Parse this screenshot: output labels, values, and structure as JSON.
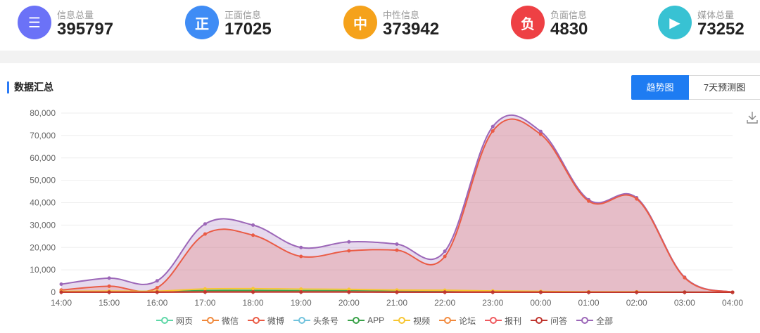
{
  "stats": [
    {
      "icon": "document-icon",
      "glyph": "☰",
      "label": "信息总量",
      "value": "395797",
      "color": "#6b72f7"
    },
    {
      "icon": "positive-icon",
      "glyph": "正",
      "label": "正面信息",
      "value": "17025",
      "color": "#3f8cf5"
    },
    {
      "icon": "neutral-icon",
      "glyph": "中",
      "label": "中性信息",
      "value": "373942",
      "color": "#f5a21b"
    },
    {
      "icon": "negative-icon",
      "glyph": "负",
      "label": "负面信息",
      "value": "4830",
      "color": "#ee4044"
    },
    {
      "icon": "media-icon",
      "glyph": "▶",
      "label": "媒体总量",
      "value": "73252",
      "color": "#38c2d3"
    }
  ],
  "section": {
    "title": "数据汇总"
  },
  "tabs": {
    "trend": "趋势图",
    "forecast": "7天预测图"
  },
  "chart_data": {
    "type": "area",
    "x": [
      "14:00",
      "15:00",
      "16:00",
      "17:00",
      "18:00",
      "19:00",
      "20:00",
      "21:00",
      "22:00",
      "23:00",
      "00:00",
      "01:00",
      "02:00",
      "03:00",
      "04:00"
    ],
    "ylim": [
      0,
      80000
    ],
    "yticks": [
      "0",
      "10,000",
      "20,000",
      "30,000",
      "40,000",
      "50,000",
      "60,000",
      "70,000",
      "80,000"
    ],
    "grid": true,
    "legend_position": "bottom",
    "series": [
      {
        "name": "网页",
        "color": "#5ed7a7",
        "values": [
          300,
          400,
          400,
          800,
          900,
          800,
          800,
          600,
          500,
          300,
          200,
          100,
          100,
          50,
          0
        ]
      },
      {
        "name": "微信",
        "color": "#f0883a",
        "values": [
          200,
          300,
          300,
          600,
          700,
          600,
          600,
          500,
          400,
          300,
          200,
          100,
          100,
          50,
          0
        ]
      },
      {
        "name": "微博",
        "color": "#ea5b45",
        "values": [
          1000,
          2700,
          2000,
          26000,
          25500,
          16000,
          18500,
          18800,
          16000,
          72000,
          70500,
          40700,
          41700,
          6500,
          0
        ]
      },
      {
        "name": "头条号",
        "color": "#72c3dd",
        "values": [
          100,
          200,
          200,
          300,
          300,
          300,
          300,
          200,
          200,
          100,
          100,
          50,
          50,
          20,
          0
        ]
      },
      {
        "name": "APP",
        "color": "#3ba24a",
        "values": [
          100,
          200,
          200,
          700,
          700,
          600,
          600,
          400,
          300,
          200,
          100,
          50,
          50,
          20,
          0
        ]
      },
      {
        "name": "视频",
        "color": "#f7c632",
        "values": [
          400,
          500,
          500,
          1500,
          1600,
          1400,
          1300,
          1000,
          900,
          600,
          400,
          200,
          200,
          50,
          0
        ]
      },
      {
        "name": "论坛",
        "color": "#f28a3e",
        "values": [
          100,
          100,
          100,
          200,
          200,
          200,
          200,
          100,
          100,
          100,
          50,
          20,
          20,
          10,
          0
        ]
      },
      {
        "name": "报刊",
        "color": "#ef5a5f",
        "values": [
          50,
          50,
          50,
          100,
          100,
          100,
          100,
          50,
          50,
          50,
          20,
          10,
          10,
          5,
          0
        ]
      },
      {
        "name": "问答",
        "color": "#c0362f",
        "values": [
          50,
          50,
          50,
          100,
          100,
          100,
          100,
          50,
          50,
          50,
          20,
          10,
          10,
          5,
          0
        ]
      },
      {
        "name": "全部",
        "color": "#9c67b8",
        "values": [
          3600,
          6300,
          5100,
          30500,
          30000,
          20000,
          22500,
          21500,
          18300,
          74000,
          71800,
          41300,
          42200,
          6700,
          0
        ]
      }
    ]
  }
}
